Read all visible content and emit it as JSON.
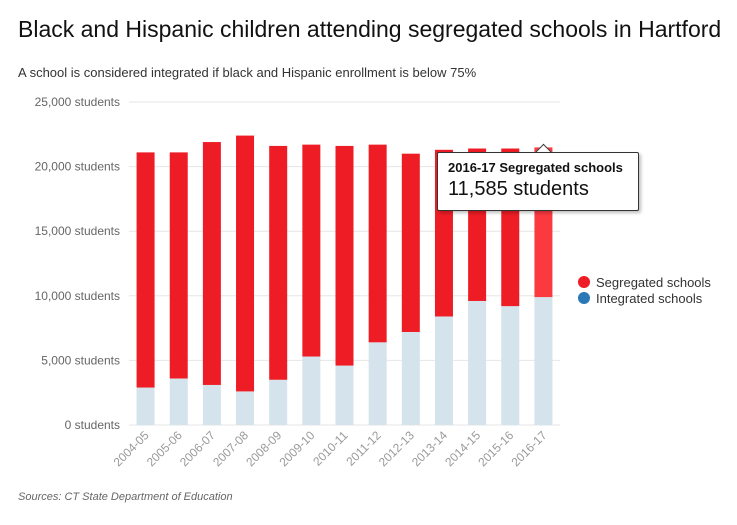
{
  "title": "Black and Hispanic children attending segregated schools in Hartford",
  "subtitle": "A school is considered integrated if black and Hispanic enrollment is below 75%",
  "source": "Sources: CT State Department of Education",
  "tooltip": {
    "title": "2016-17 Segregated schools",
    "value": "11,585 students"
  },
  "colors": {
    "segregated": "#ee1c25",
    "segregated_highlight": "#fb3a40",
    "integrated_bar": "#d4e3ec",
    "integrated_legend": "#2b78b7",
    "grid": "#e6e6e6"
  },
  "chart_data": {
    "type": "bar",
    "stacked": true,
    "categories": [
      "2004-05",
      "2005-06",
      "2006-07",
      "2007-08",
      "2008-09",
      "2009-10",
      "2010-11",
      "2011-12",
      "2012-13",
      "2013-14",
      "2014-15",
      "2015-16",
      "2016-17"
    ],
    "series": [
      {
        "name": "Integrated schools",
        "values": [
          2900,
          3600,
          3100,
          2600,
          3500,
          5300,
          4600,
          6400,
          7200,
          8400,
          9600,
          9200,
          9900
        ]
      },
      {
        "name": "Segregated schools",
        "values": [
          18200,
          17500,
          18800,
          19800,
          18100,
          16400,
          17000,
          15300,
          13800,
          12900,
          11800,
          12200,
          11585
        ]
      }
    ],
    "yticks": [
      "0 students",
      "5,000 students",
      "10,000 students",
      "15,000 students",
      "20,000 students",
      "25,000 students"
    ],
    "ylim": [
      0,
      25000
    ],
    "ystep": 5000,
    "legend": [
      "Segregated schools",
      "Integrated schools"
    ],
    "legend_position": "right",
    "grid": true,
    "highlighted_category": "2016-17"
  }
}
